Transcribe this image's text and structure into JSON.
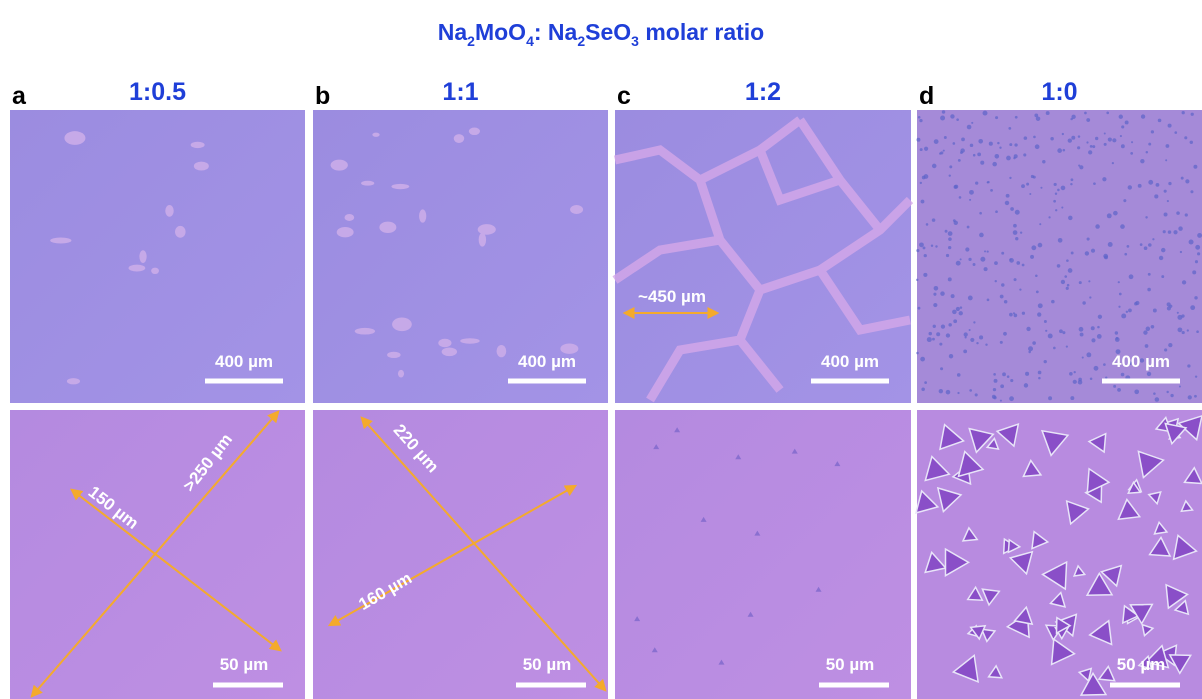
{
  "title_parts": [
    "Na",
    "2",
    "MoO",
    "4",
    ": Na",
    "2",
    "SeO",
    "3",
    " molar ratio"
  ],
  "panels": [
    {
      "letter": "a",
      "ratio": "1:0.5",
      "top_scale": "400 µm",
      "bottom_scale": "50 µm",
      "annotations": [
        "150 µm",
        ">250 µm"
      ]
    },
    {
      "letter": "b",
      "ratio": "1:1",
      "top_scale": "400 µm",
      "bottom_scale": "50 µm",
      "annotations": [
        "220 µm",
        "160 µm"
      ]
    },
    {
      "letter": "c",
      "ratio": "1:2",
      "top_scale": "400 µm",
      "bottom_scale": "50 µm",
      "annotations": [
        "~450 µm"
      ]
    },
    {
      "letter": "d",
      "ratio": "1:0",
      "top_scale": "400 µm",
      "bottom_scale": "50 µm",
      "annotations": []
    }
  ]
}
